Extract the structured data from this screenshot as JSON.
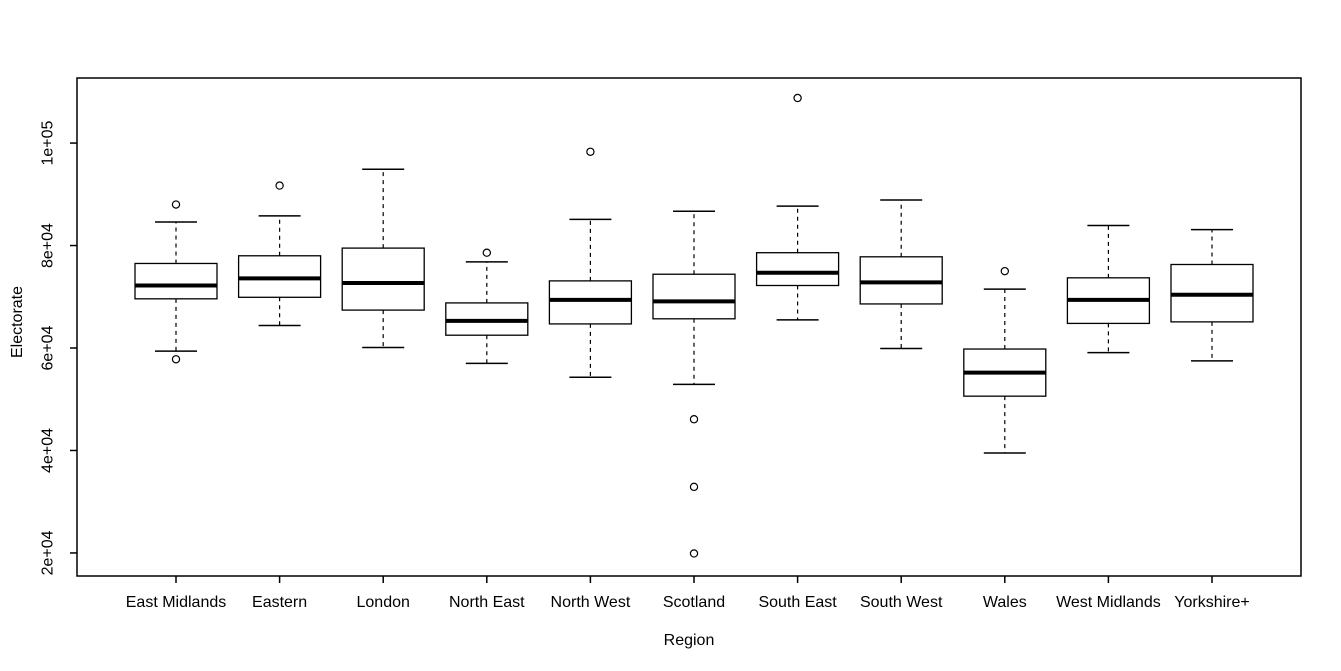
{
  "chart_data": {
    "type": "boxplot",
    "title": "",
    "xlabel": "Region",
    "ylabel": "Electorate",
    "grid": false,
    "legend": null,
    "background_color": "#ffffff",
    "stroke_color": "#000000",
    "box_fill_color": "#ffffff",
    "ylim": [
      15500,
      112700
    ],
    "y_ticks": {
      "values": [
        20000,
        40000,
        60000,
        80000,
        100000
      ],
      "labels": [
        "2e+04",
        "4e+04",
        "6e+04",
        "8e+04",
        "1e+05"
      ]
    },
    "categories": [
      "East Midlands",
      "Eastern",
      "London",
      "North East",
      "North West",
      "Scotland",
      "South East",
      "South West",
      "Wales",
      "West Midlands",
      "Yorkshire+"
    ],
    "boxes": [
      {
        "category": "East Midlands",
        "whisker_low": 59400,
        "q1": 69600,
        "median": 72200,
        "q3": 76500,
        "whisker_high": 84600,
        "outliers": [
          88000,
          57800
        ]
      },
      {
        "category": "Eastern",
        "whisker_low": 64400,
        "q1": 69900,
        "median": 73600,
        "q3": 78000,
        "whisker_high": 85800,
        "outliers": [
          91700
        ]
      },
      {
        "category": "London",
        "whisker_low": 60100,
        "q1": 67400,
        "median": 72700,
        "q3": 79500,
        "whisker_high": 94900,
        "outliers": []
      },
      {
        "category": "North East",
        "whisker_low": 57000,
        "q1": 62500,
        "median": 65300,
        "q3": 68800,
        "whisker_high": 76800,
        "outliers": [
          78600
        ]
      },
      {
        "category": "North West",
        "whisker_low": 54300,
        "q1": 64700,
        "median": 69400,
        "q3": 73100,
        "whisker_high": 85100,
        "outliers": [
          98300
        ]
      },
      {
        "category": "Scotland",
        "whisker_low": 52900,
        "q1": 65700,
        "median": 69100,
        "q3": 74400,
        "whisker_high": 86700,
        "outliers": [
          46100,
          32900,
          19900
        ]
      },
      {
        "category": "South East",
        "whisker_low": 65500,
        "q1": 72200,
        "median": 74700,
        "q3": 78600,
        "whisker_high": 87700,
        "outliers": [
          108800
        ]
      },
      {
        "category": "South West",
        "whisker_low": 59900,
        "q1": 68600,
        "median": 72800,
        "q3": 77800,
        "whisker_high": 88900,
        "outliers": []
      },
      {
        "category": "Wales",
        "whisker_low": 39500,
        "q1": 50600,
        "median": 55200,
        "q3": 59800,
        "whisker_high": 71500,
        "outliers": [
          75000
        ]
      },
      {
        "category": "West Midlands",
        "whisker_low": 59100,
        "q1": 64800,
        "median": 69400,
        "q3": 73700,
        "whisker_high": 83900,
        "outliers": []
      },
      {
        "category": "Yorkshire+",
        "whisker_low": 57500,
        "q1": 65100,
        "median": 70400,
        "q3": 76300,
        "whisker_high": 83100,
        "outliers": []
      }
    ]
  }
}
